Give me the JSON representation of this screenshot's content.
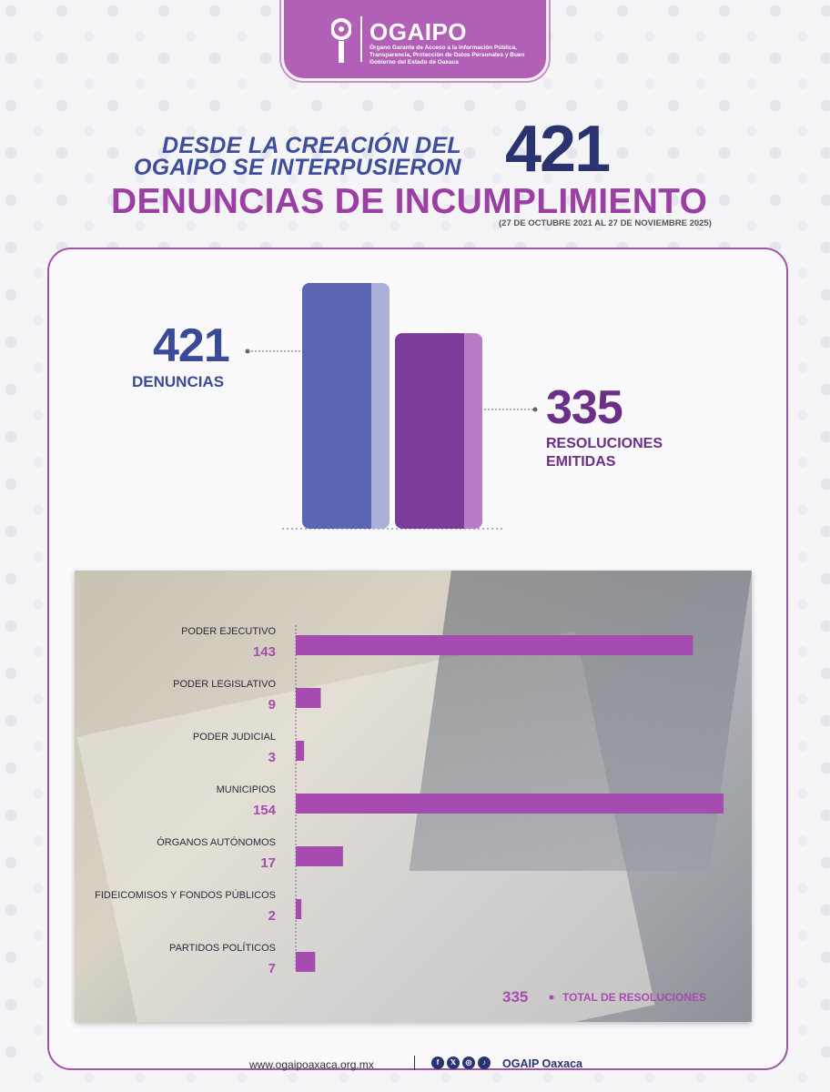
{
  "header": {
    "logo_name": "OGAIPO",
    "logo_subtitle": "Órgano Garante de Acceso a la Información Pública, Transparencia, Protección de Datos Personales y Buen Gobierno del Estado de Oaxaca"
  },
  "headline": {
    "line1": "DESDE LA CREACIÓN DEL",
    "line2": "OGAIPO SE INTERPUSIERON",
    "number": "421",
    "big": "DENUNCIAS DE INCUMPLIMIENTO",
    "range": "(27 DE OCTUBRE 2021 AL 27 DE NOVIEMBRE 2025)"
  },
  "summary": {
    "denuncias_num": "421",
    "denuncias_label": "DENUNCIAS",
    "resoluciones_num": "335",
    "resoluciones_label": "RESOLUCIONES EMITIDAS"
  },
  "chart_data": [
    {
      "type": "bar",
      "categories": [
        "DENUNCIAS",
        "RESOLUCIONES EMITIDAS"
      ],
      "values": [
        421,
        335
      ],
      "colors": [
        "#5a66b3",
        "#7b3b9a"
      ],
      "colors_light": [
        "#aab0d8",
        "#b77cc5"
      ]
    },
    {
      "type": "bar",
      "orientation": "horizontal",
      "categories": [
        "PODER EJECUTIVO",
        "PODER LEGISLATIVO",
        "PODER JUDICIAL",
        "MUNICIPIOS",
        "ÓRGANOS AUTÓNOMOS",
        "FIDEICOMISOS Y FONDOS PÚBLICOS",
        "PARTIDOS POLÍTICOS"
      ],
      "values": [
        143,
        9,
        3,
        154,
        17,
        2,
        7
      ],
      "bar_color": "#a64cb0",
      "total_value": "335",
      "total_label": "TOTAL DE RESOLUCIONES"
    }
  ],
  "footer": {
    "url": "www.ogaipoaxaca.org.mx",
    "icons": [
      "facebook-icon",
      "x-icon",
      "instagram-icon",
      "tiktok-icon"
    ],
    "handle": "OGAIP Oaxaca"
  }
}
